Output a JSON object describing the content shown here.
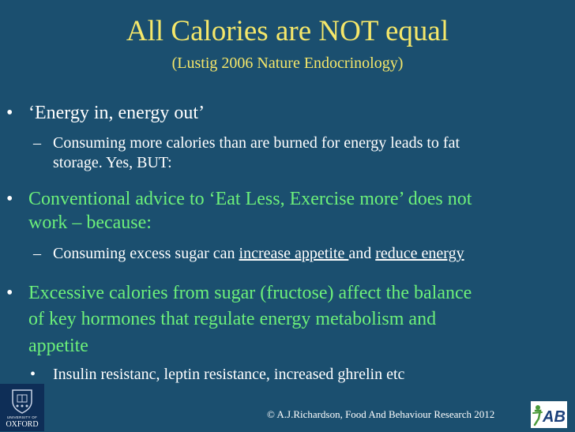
{
  "slide": {
    "title": "All Calories are NOT equal",
    "subtitle": "(Lustig 2006 Nature Endocrinology)",
    "bullet_marker": "•",
    "dash_marker": "–",
    "b1": {
      "text": "‘Energy in, energy out’"
    },
    "b1_sub": {
      "line1": "Consuming more calories than are burned for energy leads to fat",
      "line2": "storage.  Yes, BUT:"
    },
    "b2": {
      "line1": "Conventional advice to ‘Eat Less, Exercise more’ does not",
      "line2": "work – because:"
    },
    "b2_sub": {
      "before": "Consuming excess sugar can ",
      "link1": "increase appetite ",
      "middle": "and ",
      "link2": "reduce energy"
    },
    "b3": {
      "line1": "Excessive calories from sugar (fructose) affect the balance",
      "line2": "of key hormones that regulate energy metabolism and",
      "line3": "appetite"
    },
    "b3_sub": {
      "text": "Insulin resistanc, leptin resistance, increased ghrelin etc"
    }
  },
  "footer": {
    "copyright": "© A.J.Richardson, Food And Behaviour Research 2012"
  },
  "logos": {
    "oxford_univ": "UNIVERSITY OF",
    "oxford_name": "OXFORD",
    "fab_letters": "FAB"
  },
  "colors": {
    "background": "#1b4f6f",
    "title": "#f5e76a",
    "highlight_green": "#6cf07a",
    "body_text": "#ffffff",
    "oxford_blue": "#0e2e57"
  }
}
